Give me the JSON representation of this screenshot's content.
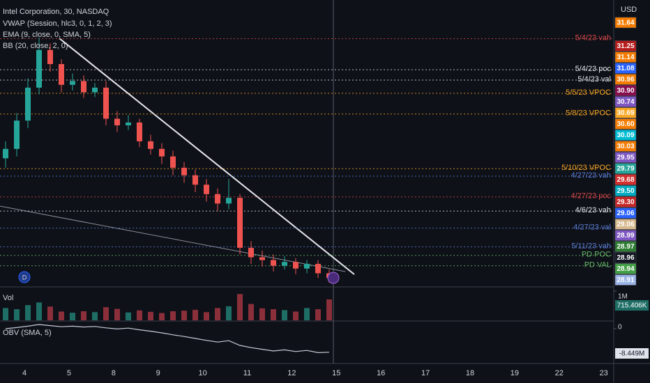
{
  "chart_data": {
    "type": "candlestick",
    "title": "Intel Corporation, 30, NASDAQ",
    "indicators": [
      "VWAP (Session, hlc3, 0, 1, 2, 3)",
      "EMA (9, close, 0, SMA, 5)",
      "BB (20, close, 2, 0)"
    ],
    "currency": "USD",
    "categories": [
      "4",
      "5",
      "8",
      "9",
      "10",
      "11",
      "12",
      "15",
      "16",
      "17",
      "18",
      "19",
      "22",
      "23"
    ],
    "ylim": [
      28.85,
      31.88
    ],
    "up_color": "#26a69a",
    "down_color": "#ef5350",
    "open": [
      30.2,
      30.3,
      30.6,
      30.95,
      31.35,
      31.2,
      30.98,
      31.02,
      30.9,
      30.95,
      30.62,
      30.55,
      30.58,
      30.38,
      30.3,
      30.22,
      30.1,
      30.02,
      29.92,
      29.82,
      29.72,
      29.78,
      29.25,
      29.15,
      29.12,
      29.06,
      29.1,
      29.03,
      29.08,
      28.98
    ],
    "high": [
      30.38,
      30.68,
      31.05,
      31.48,
      31.42,
      31.25,
      31.1,
      31.08,
      31.0,
      31.02,
      30.7,
      30.66,
      30.62,
      30.45,
      30.36,
      30.28,
      30.16,
      30.08,
      29.98,
      29.88,
      29.98,
      29.82,
      29.32,
      29.22,
      29.18,
      29.16,
      29.14,
      29.12,
      29.12,
      29.02
    ],
    "low": [
      30.1,
      30.22,
      30.52,
      30.88,
      31.12,
      30.9,
      30.92,
      30.84,
      30.85,
      30.55,
      30.48,
      30.5,
      30.32,
      30.24,
      30.14,
      30.02,
      29.94,
      29.84,
      29.74,
      29.64,
      29.66,
      29.18,
      29.08,
      29.05,
      29.0,
      29.02,
      28.97,
      28.98,
      28.93,
      28.88
    ],
    "close": [
      30.3,
      30.6,
      30.95,
      31.35,
      31.2,
      30.98,
      31.02,
      30.9,
      30.95,
      30.62,
      30.55,
      30.58,
      30.38,
      30.3,
      30.22,
      30.1,
      30.02,
      29.92,
      29.82,
      29.72,
      29.78,
      29.25,
      29.15,
      29.12,
      29.06,
      29.1,
      29.03,
      29.08,
      28.98,
      28.93
    ],
    "annotations": [
      {
        "text": "5/4/23 vah",
        "value": 31.47,
        "color": "#d84a4a"
      },
      {
        "text": "5/4/23 poc",
        "value": 31.14,
        "color": "#e0e3eb"
      },
      {
        "text": "5/4/23 val",
        "value": 31.03,
        "color": "#e0e3eb"
      },
      {
        "text": "5/5/23 VPOC",
        "value": 30.89,
        "color": "#f5a623"
      },
      {
        "text": "5/8/23 VPOC",
        "value": 30.67,
        "color": "#f5a623"
      },
      {
        "text": "5/10/23 VPOC",
        "value": 30.09,
        "color": "#f5a623"
      },
      {
        "text": "4/27/23 vah",
        "value": 30.01,
        "color": "#5b7fd6"
      },
      {
        "text": "4/27/23 poc",
        "value": 29.79,
        "color": "#d84a4a"
      },
      {
        "text": "4/6/23 vah",
        "value": 29.64,
        "color": "#e0e3eb"
      },
      {
        "text": "4/27/23 val",
        "value": 29.46,
        "color": "#5b7fd6"
      },
      {
        "text": "5/11/23 vah",
        "value": 29.26,
        "color": "#5b7fd6"
      },
      {
        "text": "PD POC",
        "value": 29.17,
        "color": "#66bb6a"
      },
      {
        "text": "PD VAL",
        "value": 29.06,
        "color": "#66bb6a"
      }
    ],
    "price_labels": [
      {
        "value": 31.64,
        "label": "31.64",
        "color": "#f57c00"
      },
      {
        "value": 31.25,
        "label": "31.25",
        "color": "#b71c1c"
      },
      {
        "value": 31.14,
        "label": "31.14",
        "color": "#f57c00"
      },
      {
        "value": 31.08,
        "label": "31.08",
        "color": "#2962ff"
      },
      {
        "value": 30.96,
        "label": "30.96",
        "color": "#f57c00"
      },
      {
        "value": 30.9,
        "label": "30.90",
        "color": "#880e4f"
      },
      {
        "value": 30.74,
        "label": "30.74",
        "color": "#7e57c2"
      },
      {
        "value": 30.69,
        "label": "30.69",
        "color": "#f9a825"
      },
      {
        "value": 30.6,
        "label": "30.60",
        "color": "#f57c00"
      },
      {
        "value": 30.09,
        "label": "30.09",
        "color": "#00bcd4"
      },
      {
        "value": 30.03,
        "label": "30.03",
        "color": "#f57c00"
      },
      {
        "value": 29.95,
        "label": "29.95",
        "color": "#7e57c2"
      },
      {
        "value": 29.79,
        "label": "29.79",
        "color": "#26a69a"
      },
      {
        "value": 29.68,
        "label": "29.68",
        "color": "#d32f2f"
      },
      {
        "value": 29.5,
        "label": "29.50",
        "color": "#00acc1"
      },
      {
        "value": 29.3,
        "label": "29.30",
        "color": "#c62828"
      },
      {
        "value": 29.06,
        "label": "29.06",
        "color": "#2962ff"
      },
      {
        "value": 29.06,
        "label": "29.06",
        "color": "#d7b98e"
      },
      {
        "value": 28.99,
        "label": "28.99",
        "color": "#7e57c2"
      },
      {
        "value": 28.97,
        "label": "28.97",
        "color": "#2e7d32"
      },
      {
        "value": 28.96,
        "label": "28.96",
        "color": "#131722"
      },
      {
        "value": 28.94,
        "label": "28.94",
        "color": "#43a047"
      },
      {
        "value": 28.91,
        "label": "28.91",
        "color": "#9ab4e6"
      }
    ],
    "volume": {
      "name": "Vol",
      "ylim": [
        0,
        1000000
      ],
      "yticks": [
        {
          "value": 1000000,
          "label": "1M"
        }
      ],
      "values": [
        420000,
        380000,
        520000,
        610000,
        470000,
        300000,
        260000,
        310000,
        280000,
        450000,
        390000,
        270000,
        340000,
        290000,
        250000,
        310000,
        330000,
        360000,
        280000,
        420000,
        480000,
        900000,
        560000,
        410000,
        380000,
        350000,
        300000,
        420000,
        380000,
        715406
      ],
      "value_labels": [
        null,
        null,
        null,
        null,
        null,
        null,
        null,
        null,
        null,
        null,
        null,
        null,
        null,
        null,
        null,
        null,
        null,
        null,
        null,
        null,
        null,
        null,
        null,
        null,
        null,
        null,
        null,
        null,
        null,
        "715.406K"
      ]
    },
    "obv": {
      "name": "OBV (SMA, 5)",
      "ylim": [
        -12000000,
        2000000
      ],
      "yticks": [
        0
      ],
      "color": "#c8ccd8",
      "values": [
        0,
        400000,
        900000,
        1500000,
        1100000,
        700000,
        900000,
        600000,
        800000,
        300000,
        -100000,
        200000,
        -400000,
        -900000,
        -1500000,
        -2200000,
        -2800000,
        -3500000,
        -4200000,
        -4800000,
        -4300000,
        -6000000,
        -6800000,
        -7400000,
        -8000000,
        -7600000,
        -8200000,
        -7800000,
        -8600000,
        -8449000
      ],
      "value_labels": [
        null,
        null,
        null,
        null,
        null,
        null,
        null,
        null,
        null,
        null,
        null,
        null,
        null,
        null,
        null,
        null,
        null,
        null,
        null,
        null,
        null,
        null,
        null,
        null,
        null,
        null,
        null,
        null,
        null,
        "-8.449M"
      ]
    }
  }
}
